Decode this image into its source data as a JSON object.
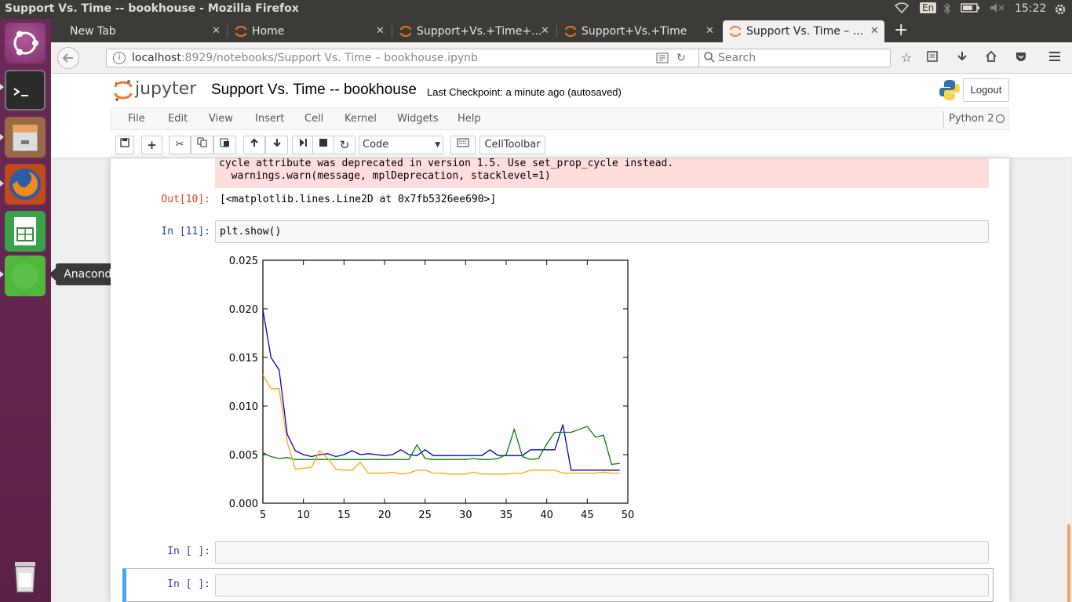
{
  "window": {
    "title": "Support Vs. Time -- bookhouse - Mozilla Firefox"
  },
  "tray": {
    "keyboard": "En",
    "time": "15:22"
  },
  "launcher": {
    "tooltip": "Anaconda Navigator"
  },
  "tabs": [
    {
      "label": "New Tab"
    },
    {
      "label": "Home"
    },
    {
      "label": "Support+Vs.+Time+..."
    },
    {
      "label": "Support+Vs.+Time"
    },
    {
      "label": "Support Vs. Time – ..."
    }
  ],
  "nav": {
    "url_host": "localhost",
    "url_rest": ":8929/notebooks/Support Vs. Time – bookhouse.ipynb",
    "search_placeholder": "Search"
  },
  "jupyter": {
    "logo_text": "jupyter",
    "notebook_title": "Support Vs. Time -- bookhouse",
    "checkpoint": "Last Checkpoint: a minute ago (autosaved)",
    "logout": "Logout",
    "kernel": "Python 2",
    "menu": [
      "File",
      "Edit",
      "View",
      "Insert",
      "Cell",
      "Kernel",
      "Widgets",
      "Help"
    ],
    "cell_type": "Code",
    "celltoolbar": "CellToolbar"
  },
  "cells": {
    "warning_line1": "cycle attribute was deprecated in version 1.5. Use set_prop_cycle instead.",
    "warning_line2": "  warnings.warn(message, mplDeprecation, stacklevel=1)",
    "out10_prompt": "Out[10]:",
    "out10_text": "[<matplotlib.lines.Line2D at 0x7fb5326ee690>]",
    "in11_prompt": "In [11]:",
    "in11_code": "plt.show()",
    "empty1_prompt": "In [ ]:",
    "empty2_prompt": "In [ ]:"
  },
  "chart_data": {
    "type": "line",
    "x": [
      5,
      6,
      7,
      8,
      9,
      10,
      11,
      12,
      13,
      14,
      15,
      16,
      17,
      18,
      19,
      20,
      21,
      22,
      23,
      24,
      25,
      26,
      27,
      28,
      29,
      30,
      31,
      32,
      33,
      34,
      35,
      36,
      37,
      38,
      39,
      40,
      41,
      42,
      43,
      44,
      45,
      46,
      47,
      48,
      49
    ],
    "xlim": [
      5,
      50
    ],
    "ylim": [
      0.0,
      0.025
    ],
    "xticks": [
      "5",
      "10",
      "15",
      "20",
      "25",
      "30",
      "35",
      "40",
      "45",
      "50"
    ],
    "yticks": [
      "0.000",
      "0.005",
      "0.010",
      "0.015",
      "0.020",
      "0.025"
    ],
    "xlabel": "",
    "ylabel": "",
    "title": "",
    "grid": false,
    "series": [
      {
        "color": "#0000cc",
        "values": [
          0.0199,
          0.015,
          0.0137,
          0.0071,
          0.0054,
          0.005,
          0.0048,
          0.005,
          0.0051,
          0.0048,
          0.005,
          0.0054,
          0.005,
          0.0051,
          0.005,
          0.0049,
          0.005,
          0.0055,
          0.005,
          0.0049,
          0.0055,
          0.0049,
          0.0049,
          0.0049,
          0.0049,
          0.0049,
          0.0049,
          0.0049,
          0.0055,
          0.0049,
          0.0049,
          0.0049,
          0.0049,
          0.0055,
          0.0055,
          0.0055,
          0.0055,
          0.0081,
          0.0034,
          0.0034,
          0.0034,
          0.0034,
          0.0034,
          0.0034,
          0.0034
        ]
      },
      {
        "color": "#008000",
        "values": [
          0.0052,
          0.0048,
          0.0046,
          0.0047,
          0.0045,
          0.0045,
          0.0045,
          0.0045,
          0.0045,
          0.0045,
          0.0045,
          0.0045,
          0.0045,
          0.0045,
          0.0045,
          0.0045,
          0.0045,
          0.0045,
          0.0045,
          0.006,
          0.0046,
          0.0045,
          0.0045,
          0.0045,
          0.0045,
          0.0045,
          0.0046,
          0.0045,
          0.0045,
          0.0046,
          0.005,
          0.0076,
          0.0048,
          0.0045,
          0.0046,
          0.0061,
          0.0073,
          0.0073,
          0.0073,
          0.0076,
          0.0079,
          0.0068,
          0.007,
          0.004,
          0.0041
        ]
      },
      {
        "color": "#ffa500",
        "values": [
          0.0132,
          0.0118,
          0.0118,
          0.0063,
          0.0035,
          0.0036,
          0.0037,
          0.0054,
          0.0046,
          0.0035,
          0.0034,
          0.0034,
          0.0042,
          0.0031,
          0.0031,
          0.0031,
          0.0032,
          0.003,
          0.0031,
          0.0034,
          0.0034,
          0.0031,
          0.0031,
          0.003,
          0.003,
          0.003,
          0.0032,
          0.003,
          0.003,
          0.003,
          0.003,
          0.0031,
          0.0031,
          0.0034,
          0.0034,
          0.0034,
          0.0034,
          0.0031,
          0.0031,
          0.0031,
          0.0031,
          0.0031,
          0.0032,
          0.0031,
          0.0031
        ]
      }
    ]
  }
}
